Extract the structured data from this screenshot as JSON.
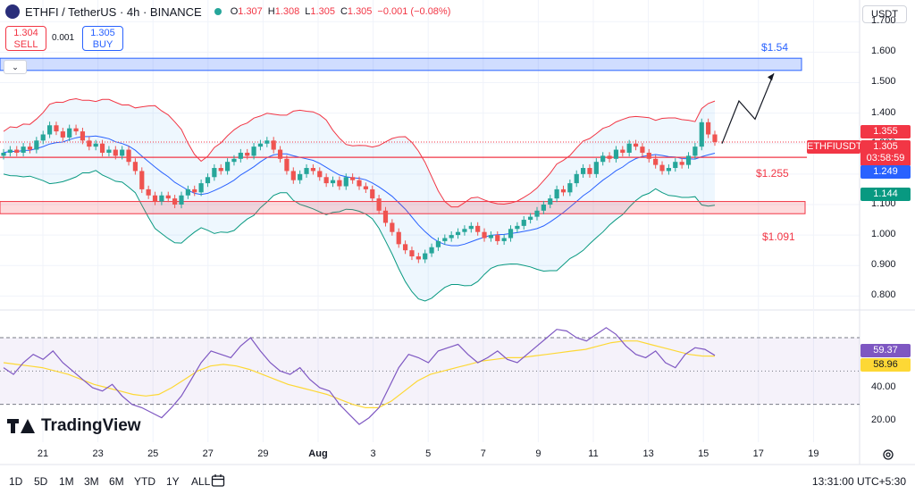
{
  "header": {
    "symbol": "ETHFI / TetherUS · 4h · BINANCE",
    "o_label": "O",
    "o": "1.307",
    "h_label": "H",
    "h": "1.308",
    "l_label": "L",
    "l": "1.305",
    "c_label": "C",
    "c": "1.305",
    "change": "−0.001 (−0.08%)",
    "currency": "USDT",
    "collapse_glyph": "⌄",
    "logo_icon": "ethfi-logo-icon",
    "status_icon": "market-open-dot-icon"
  },
  "trade": {
    "sell_price": "1.304",
    "sell_label": "SELL",
    "spread": "0.001",
    "buy_price": "1.305",
    "buy_label": "BUY"
  },
  "levels": {
    "upper": "$1.54",
    "mid": "$1.255",
    "lower": "$1.091"
  },
  "price_tags": {
    "symbol": "ETHFIUSDT",
    "last": "1.305",
    "countdown": "03:58:59",
    "bb_upper": "1.355",
    "bb_basis": "1.249",
    "bb_lower": "1.144"
  },
  "rsi_tags": {
    "rsi": "59.37",
    "ma": "58.96"
  },
  "timeframes": [
    "1D",
    "5D",
    "1M",
    "3M",
    "6M",
    "YTD",
    "1Y",
    "ALL"
  ],
  "clock": "13:31:00 UTC+5:30",
  "brand": "TradingView",
  "colors": {
    "up": "#26a69a",
    "down": "#ef5350",
    "bb_upper": "#f23645",
    "bb_basis": "#2962ff",
    "bb_lower": "#089981",
    "bb_fill": "#2196f3",
    "rsi": "#7e57c2",
    "rsi_ma": "#fdd835",
    "zone_blue": "#2962ff",
    "zone_red": "#f23645"
  },
  "chart_data": [
    {
      "type": "candlestick",
      "title": "ETHFI / TetherUS · 4h · BINANCE",
      "indicators": [
        "Bollinger Bands"
      ],
      "y_ticks": [
        "1.700",
        "1.600",
        "1.500",
        "1.400",
        "1.300",
        "1.200",
        "1.100",
        "1.000",
        "0.900",
        "0.800"
      ],
      "ylim": [
        0.76,
        1.73
      ],
      "x_ticks": [
        "21",
        "23",
        "25",
        "27",
        "29",
        "Aug",
        "3",
        "5",
        "7",
        "9",
        "11",
        "13",
        "15",
        "17",
        "19"
      ],
      "close": [
        1.27,
        1.28,
        1.27,
        1.29,
        1.28,
        1.31,
        1.33,
        1.36,
        1.34,
        1.32,
        1.35,
        1.34,
        1.31,
        1.29,
        1.3,
        1.27,
        1.28,
        1.26,
        1.28,
        1.24,
        1.21,
        1.15,
        1.13,
        1.11,
        1.13,
        1.12,
        1.1,
        1.13,
        1.15,
        1.14,
        1.17,
        1.19,
        1.22,
        1.21,
        1.24,
        1.25,
        1.27,
        1.26,
        1.29,
        1.3,
        1.31,
        1.28,
        1.25,
        1.21,
        1.18,
        1.2,
        1.22,
        1.21,
        1.19,
        1.17,
        1.18,
        1.16,
        1.19,
        1.18,
        1.16,
        1.15,
        1.12,
        1.08,
        1.04,
        1.01,
        0.97,
        0.95,
        0.93,
        0.92,
        0.94,
        0.96,
        0.98,
        0.99,
        1.0,
        1.01,
        1.02,
        1.03,
        1.01,
        0.99,
        1.0,
        0.98,
        0.99,
        1.02,
        1.03,
        1.05,
        1.06,
        1.08,
        1.1,
        1.12,
        1.15,
        1.14,
        1.17,
        1.2,
        1.22,
        1.2,
        1.24,
        1.26,
        1.25,
        1.28,
        1.27,
        1.3,
        1.29,
        1.27,
        1.25,
        1.23,
        1.21,
        1.22,
        1.24,
        1.23,
        1.26,
        1.29,
        1.37,
        1.33,
        1.305
      ],
      "bb_upper": 1.355,
      "bb_basis": 1.249,
      "bb_lower": 1.144,
      "last_price": 1.305,
      "resistance_zone": [
        1.54,
        1.58
      ],
      "support_lines": [
        1.255
      ],
      "support_zone": [
        1.07,
        1.11
      ],
      "projection": [
        [
          1.29,
          1.38
        ],
        [
          1.4,
          1.53
        ]
      ],
      "annotations": [
        "$1.54",
        "$1.255",
        "$1.091"
      ]
    },
    {
      "type": "line",
      "title": "RSI",
      "y_ticks": [
        "40.00",
        "20.00"
      ],
      "ylim": [
        10,
        85
      ],
      "band": [
        30,
        70
      ],
      "series": [
        {
          "name": "RSI",
          "values": [
            52,
            48,
            55,
            60,
            57,
            62,
            55,
            50,
            45,
            40,
            38,
            42,
            35,
            30,
            28,
            25,
            22,
            28,
            35,
            45,
            55,
            62,
            60,
            58,
            65,
            70,
            62,
            55,
            50,
            48,
            52,
            45,
            40,
            38,
            30,
            24,
            18,
            22,
            28,
            40,
            52,
            60,
            58,
            55,
            62,
            64,
            66,
            60,
            55,
            58,
            62,
            57,
            55,
            60,
            65,
            70,
            75,
            74,
            70,
            68,
            72,
            76,
            72,
            65,
            60,
            58,
            62,
            55,
            52,
            60,
            64,
            63,
            59.37
          ]
        },
        {
          "name": "RSI-based MA",
          "values": [
            55,
            54,
            53,
            52,
            50,
            48,
            45,
            42,
            40,
            38,
            36,
            35,
            36,
            40,
            45,
            50,
            53,
            54,
            53,
            51,
            48,
            45,
            42,
            40,
            38,
            36,
            33,
            30,
            28,
            28,
            32,
            38,
            44,
            48,
            50,
            52,
            54,
            56,
            57,
            58,
            58,
            59,
            60,
            61,
            62,
            63,
            65,
            67,
            68,
            68,
            66,
            64,
            62,
            60,
            59,
            58.96
          ]
        }
      ]
    }
  ]
}
